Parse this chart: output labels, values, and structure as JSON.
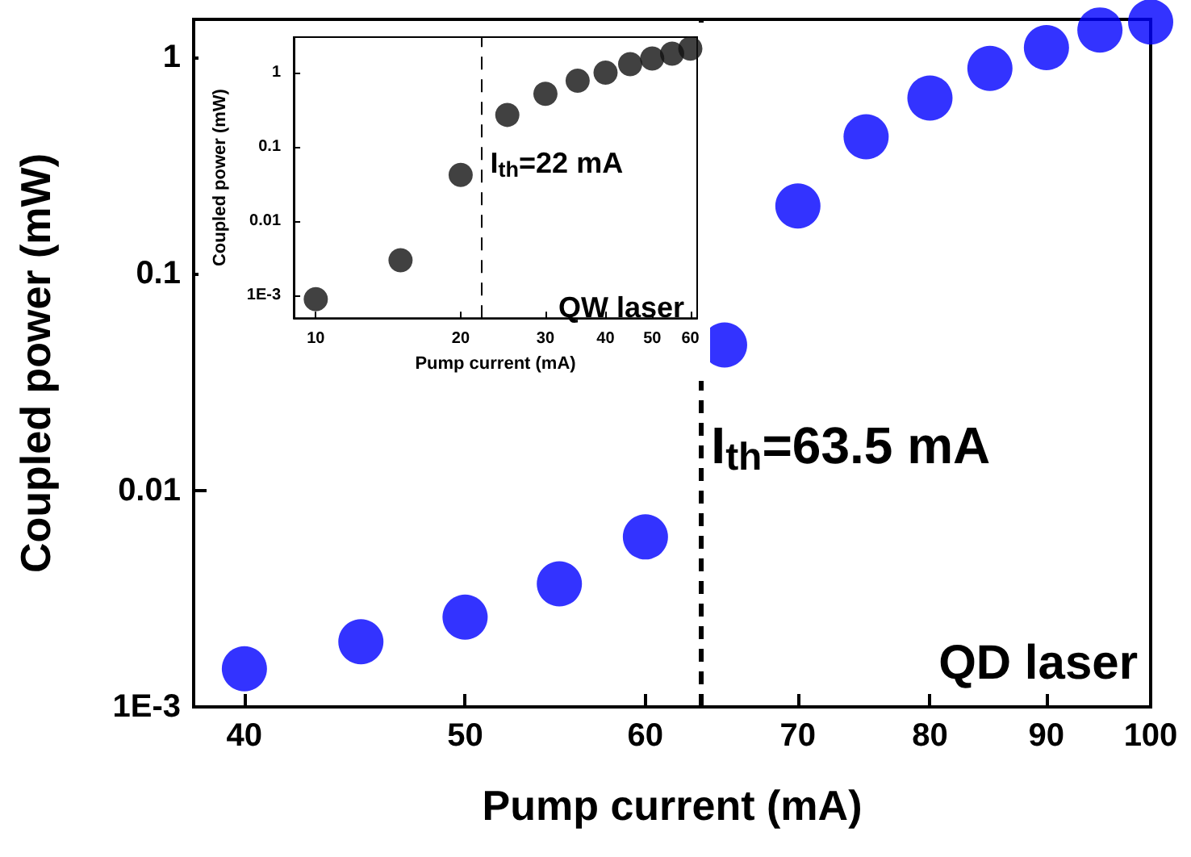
{
  "chart_data": [
    {
      "type": "scatter",
      "xlabel": "Pump current (mA)",
      "ylabel": "Coupled power (mW)",
      "x": [
        40,
        45,
        50,
        55,
        60,
        65,
        70,
        75,
        80,
        85,
        90,
        95,
        100
      ],
      "series": [
        {
          "color": "#0000ff",
          "values": [
            0.0015,
            0.002,
            0.0026,
            0.0037,
            0.0061,
            0.047,
            0.206,
            0.43,
            0.65,
            0.89,
            1.11,
            1.34,
            1.46
          ]
        }
      ],
      "log": "xy",
      "xlim": [
        38,
        100
      ],
      "xticks": [
        40,
        50,
        60,
        70,
        80,
        90,
        100
      ],
      "ylim": [
        0.001,
        1.5
      ],
      "yticks": [
        {
          "value": 0.001,
          "label": "1E-3"
        },
        0.01,
        0.1,
        1
      ],
      "ref_lines": [
        {
          "axis": "x",
          "value": 63.5,
          "label": "I$_{th}$=63.5 mA",
          "line_style": "dashed",
          "color": "#000000"
        }
      ],
      "annotations": [
        "QD laser"
      ],
      "marker": "circle",
      "grid": false
    },
    {
      "type": "scatter",
      "xlabel": "Pump current (mA)",
      "ylabel": "Coupled power (mW)",
      "x": [
        10,
        15,
        20,
        25,
        30,
        35,
        40,
        45,
        50,
        55,
        60
      ],
      "series": [
        {
          "color": "#111111",
          "values": [
            0.0009,
            0.003,
            0.042,
            0.27,
            0.52,
            0.78,
            1.0,
            1.3,
            1.55,
            1.8,
            2.1
          ]
        }
      ],
      "log": "xy",
      "xlim": [
        9,
        62
      ],
      "xticks": [
        10,
        20,
        30,
        40,
        50,
        60
      ],
      "ylim": [
        0.0005,
        3
      ],
      "yticks": [
        {
          "value": 0.001,
          "label": "1E-3"
        },
        0.01,
        0.1,
        1
      ],
      "ref_lines": [
        {
          "axis": "x",
          "value": 22,
          "label": "I$_{th}$=22 mA",
          "line_style": "dashed",
          "color": "#000000"
        }
      ],
      "annotations": [
        "QW laser"
      ],
      "marker": "circle",
      "grid": false
    }
  ]
}
